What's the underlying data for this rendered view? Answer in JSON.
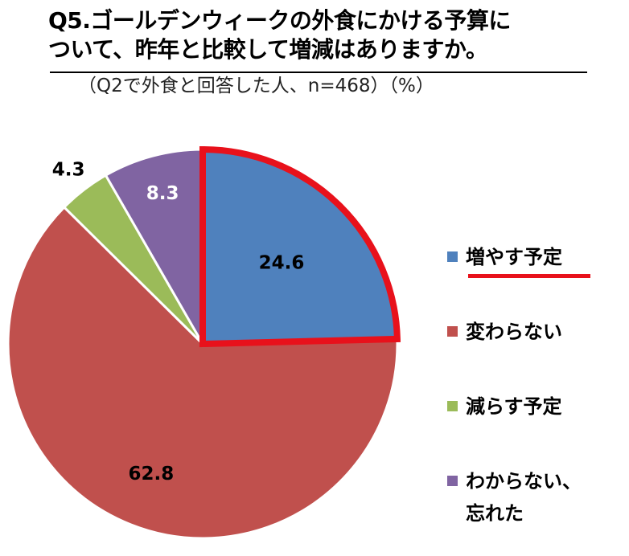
{
  "title": {
    "line1": "Q5.ゴールデンウィークの外食にかける予算に",
    "line2": "ついて、昨年と比較して増減はありますか。"
  },
  "subtitle": "（Q2で外食と回答した人、n=468）（%）",
  "colors": {
    "increase": "#4f81bd",
    "same": "#c0504d",
    "decrease": "#9bbb59",
    "unknown": "#8064a2",
    "highlight": "#e8111b"
  },
  "chart_data": {
    "type": "pie",
    "start_angle": "12 o'clock",
    "direction": "clockwise",
    "highlighted_slice": "増やす予定",
    "legend_position": "right",
    "slices": [
      {
        "label": "増やす予定",
        "value": 24.6,
        "display": "24.6",
        "color": "#4f81bd",
        "label_color": "#000000"
      },
      {
        "label": "変わらない",
        "value": 62.8,
        "display": "62.8",
        "color": "#c0504d",
        "label_color": "#000000"
      },
      {
        "label": "減らす予定",
        "value": 4.3,
        "display": "4.3",
        "color": "#9bbb59",
        "label_color": "#000000"
      },
      {
        "label": "わからない、\n忘れた",
        "value": 8.3,
        "display": "8.3",
        "color": "#8064a2",
        "label_color": "#ffffff"
      }
    ]
  }
}
